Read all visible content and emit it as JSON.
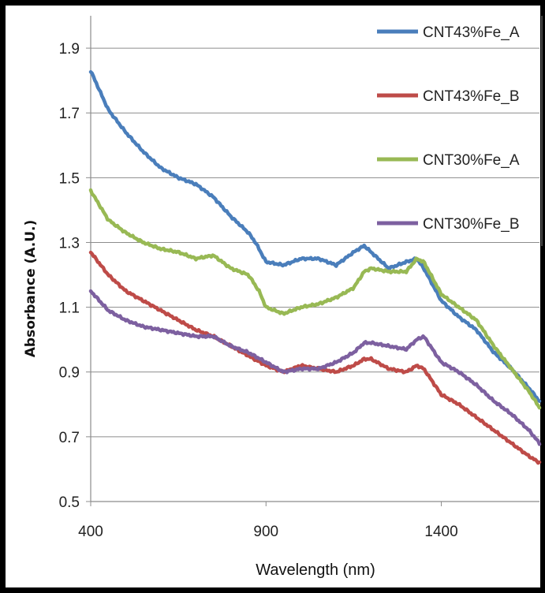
{
  "chart_data": {
    "type": "line",
    "xlabel": "Wavelength (nm)",
    "ylabel": "Absorbance (A.U.)",
    "xlim": [
      400,
      1680
    ],
    "ylim": [
      0.5,
      2.0
    ],
    "xticks": [
      400,
      900,
      1400
    ],
    "yticks": [
      0.5,
      0.7,
      0.9,
      1.1,
      1.3,
      1.5,
      1.7,
      1.9
    ],
    "grid": "horizontal",
    "legend": "right",
    "series": [
      {
        "name": "CNT43%Fe_A",
        "color": "#4a7ebb",
        "x": [
          400,
          450,
          500,
          550,
          600,
          650,
          700,
          750,
          800,
          850,
          870,
          900,
          950,
          1000,
          1050,
          1100,
          1150,
          1180,
          1200,
          1250,
          1300,
          1330,
          1350,
          1400,
          1450,
          1500,
          1550,
          1600,
          1650,
          1680
        ],
        "y": [
          1.83,
          1.71,
          1.64,
          1.58,
          1.53,
          1.5,
          1.48,
          1.44,
          1.38,
          1.33,
          1.3,
          1.24,
          1.23,
          1.25,
          1.25,
          1.23,
          1.27,
          1.29,
          1.27,
          1.22,
          1.24,
          1.25,
          1.22,
          1.12,
          1.07,
          1.03,
          0.96,
          0.91,
          0.85,
          0.81
        ]
      },
      {
        "name": "CNT43%Fe_B",
        "color": "#be4b48",
        "x": [
          400,
          450,
          500,
          550,
          600,
          650,
          700,
          750,
          800,
          850,
          900,
          950,
          1000,
          1050,
          1100,
          1150,
          1180,
          1200,
          1250,
          1300,
          1330,
          1350,
          1400,
          1450,
          1500,
          1550,
          1600,
          1650,
          1680
        ],
        "y": [
          1.27,
          1.2,
          1.15,
          1.12,
          1.09,
          1.06,
          1.03,
          1.01,
          0.98,
          0.95,
          0.92,
          0.9,
          0.92,
          0.91,
          0.9,
          0.92,
          0.94,
          0.94,
          0.91,
          0.9,
          0.92,
          0.91,
          0.83,
          0.8,
          0.76,
          0.72,
          0.68,
          0.64,
          0.62
        ]
      },
      {
        "name": "CNT30%Fe_A",
        "color": "#98b954",
        "x": [
          400,
          450,
          500,
          550,
          600,
          650,
          700,
          750,
          800,
          850,
          880,
          900,
          950,
          1000,
          1050,
          1100,
          1150,
          1180,
          1200,
          1250,
          1300,
          1330,
          1350,
          1400,
          1450,
          1500,
          1550,
          1600,
          1650,
          1680
        ],
        "y": [
          1.46,
          1.37,
          1.33,
          1.3,
          1.28,
          1.27,
          1.25,
          1.26,
          1.22,
          1.2,
          1.15,
          1.1,
          1.08,
          1.1,
          1.11,
          1.13,
          1.16,
          1.21,
          1.22,
          1.21,
          1.21,
          1.25,
          1.24,
          1.14,
          1.1,
          1.06,
          0.98,
          0.91,
          0.84,
          0.79
        ]
      },
      {
        "name": "CNT30%Fe_B",
        "color": "#7d60a0",
        "x": [
          400,
          450,
          500,
          550,
          600,
          650,
          700,
          750,
          800,
          850,
          900,
          950,
          1000,
          1050,
          1100,
          1150,
          1180,
          1200,
          1250,
          1300,
          1330,
          1350,
          1400,
          1450,
          1500,
          1550,
          1600,
          1650,
          1680
        ],
        "y": [
          1.15,
          1.09,
          1.06,
          1.04,
          1.03,
          1.02,
          1.01,
          1.01,
          0.98,
          0.96,
          0.93,
          0.9,
          0.91,
          0.91,
          0.93,
          0.96,
          0.99,
          0.99,
          0.98,
          0.97,
          1.0,
          1.01,
          0.93,
          0.9,
          0.86,
          0.81,
          0.77,
          0.72,
          0.68
        ]
      }
    ]
  }
}
